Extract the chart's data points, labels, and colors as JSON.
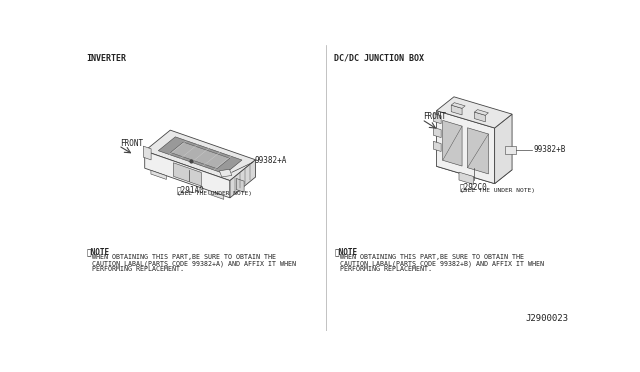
{
  "bg_color": "#ffffff",
  "line_color": "#444444",
  "text_color": "#222222",
  "title_left": "INVERTER",
  "title_right": "DC/DC JUNCTION BOX",
  "left_part_label": "※291A0",
  "left_part_sub": "(SEE THE UNDER NOTE)",
  "left_tag_label": "99382+A",
  "left_front_label": "FRONT",
  "right_part_label": "※292C0",
  "right_part_sub": "(SEE THE UNDER NOTE)",
  "right_tag_label": "99382+B",
  "right_front_label": "FRONT",
  "left_note_title": "※NOTE",
  "left_note_text1": "WHEN OBTAINING THIS PART,BE SURE TO OBTAIN THE",
  "left_note_text2": "CAUTION LABAL(PARTS CODE 99382+A) AND AFFIX IT WHEN",
  "left_note_text3": "PERFORMING REPLACEMENT.",
  "right_note_title": "※NOTE",
  "right_note_text1": "WHEN OBTAINING THIS PART,BE SURE TO OBTAIN THE",
  "right_note_text2": "CAUTION LABAL(PARTS CODE 99382+B) AND AFFIX IT WHEN",
  "right_note_text3": "PERFORMING REPLACEMENT.",
  "diagram_id": "J2900023"
}
